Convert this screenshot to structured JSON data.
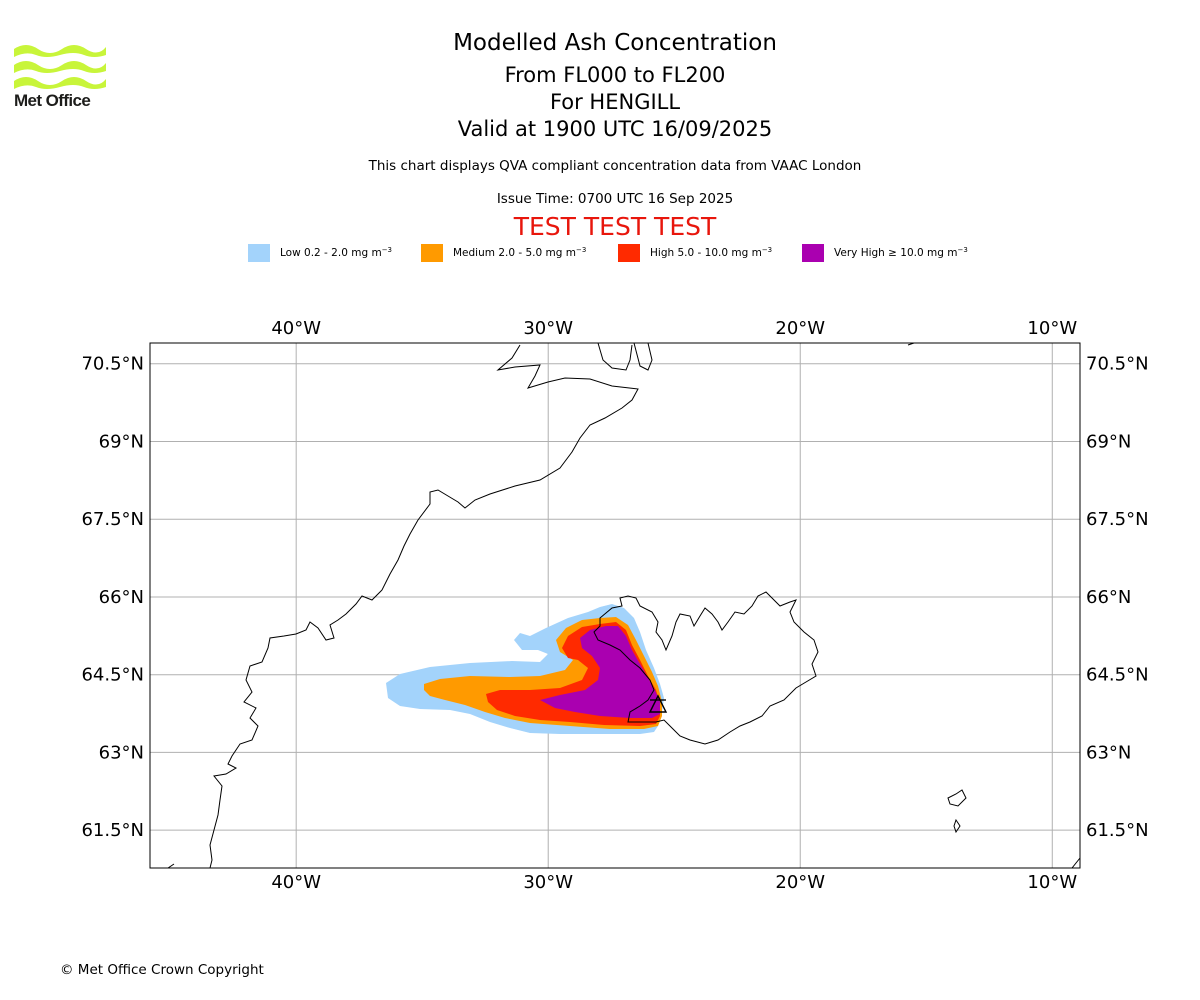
{
  "header": {
    "title": "Modelled Ash Concentration",
    "levels": "From FL000 to FL200",
    "volcano": "For HENGILL",
    "valid": "Valid at 1900 UTC 16/09/2025",
    "note": "This chart displays QVA compliant concentration data from VAAC London",
    "issue": "Issue Time: 0700 UTC 16 Sep 2025",
    "test": "TEST TEST TEST"
  },
  "logo": {
    "text": "Met Office",
    "color": "#c8f53a"
  },
  "legend": [
    {
      "prefix": "Low 0.2 - 2.0 mg m",
      "color": "#a3d3fb"
    },
    {
      "prefix": "Medium 2.0 - 5.0 mg m",
      "color": "#ff9a00"
    },
    {
      "prefix": "High 5.0 - 10.0 mg m",
      "color": "#ff2a00"
    },
    {
      "prefix": "Very High ≥ 10.0 mg m",
      "color": "#aa00b0"
    }
  ],
  "legend_unit_exp": "−3",
  "map": {
    "lon_range": [
      -45.8,
      -8.9
    ],
    "lat_range": [
      60.77,
      70.9
    ],
    "lon_ticks": [
      {
        "value": -40,
        "label": "40°W"
      },
      {
        "value": -30,
        "label": "30°W"
      },
      {
        "value": -20,
        "label": "20°W"
      },
      {
        "value": -10,
        "label": "10°W"
      }
    ],
    "lat_ticks": [
      {
        "value": 70.5,
        "label": "70.5°N"
      },
      {
        "value": 69,
        "label": "69°N"
      },
      {
        "value": 67.5,
        "label": "67.5°N"
      },
      {
        "value": 66,
        "label": "66°N"
      },
      {
        "value": 64.5,
        "label": "64.5°N"
      },
      {
        "value": 63,
        "label": "63°N"
      },
      {
        "value": 61.5,
        "label": "61.5°N"
      }
    ],
    "grid": true,
    "volcano_marker": "triangle"
  },
  "footer": {
    "copyright": "© Met Office Crown Copyright"
  }
}
